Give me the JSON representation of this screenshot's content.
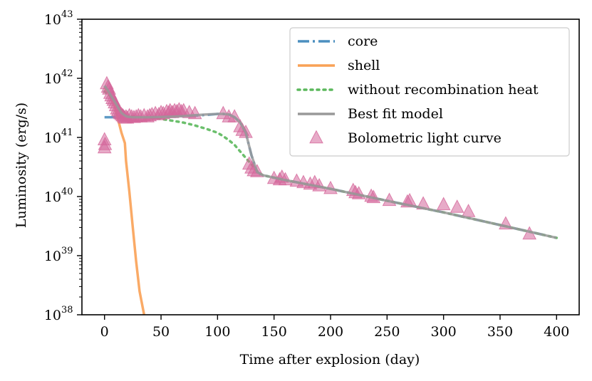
{
  "chart_data": {
    "type": "line",
    "title": "",
    "xlabel": "Time after explosion (day)",
    "ylabel": "Luminosity (erg/s)",
    "xlim": [
      -20,
      420
    ],
    "ylim": [
      1e+38,
      1e+43
    ],
    "yscale": "log",
    "x_ticks": [
      0,
      50,
      100,
      150,
      200,
      250,
      300,
      350,
      400
    ],
    "y_ticks": [
      {
        "value": 1e+38,
        "base": "10",
        "exp": "38"
      },
      {
        "value": 1e+39,
        "base": "10",
        "exp": "39"
      },
      {
        "value": 1e+40,
        "base": "10",
        "exp": "40"
      },
      {
        "value": 1e+41,
        "base": "10",
        "exp": "41"
      },
      {
        "value": 1e+42,
        "base": "10",
        "exp": "42"
      },
      {
        "value": 1e+43,
        "base": "10",
        "exp": "43"
      }
    ],
    "legend_position": "top-right",
    "series": [
      {
        "name": "core",
        "color": "#4c8fbf",
        "style": "dashdot",
        "x": [
          0,
          5,
          10,
          15,
          20,
          30,
          40,
          50,
          60,
          70,
          80,
          90,
          100,
          105,
          110,
          115,
          120,
          125,
          130,
          135,
          140,
          160,
          200,
          250,
          300,
          350,
          400
        ],
        "y": [
          2.2e+41,
          2.2e+41,
          2.2e+41,
          2.2e+41,
          2.2e+41,
          2.2e+41,
          2.2e+41,
          2.2e+41,
          2.25e+41,
          2.3e+41,
          2.35e+41,
          2.4e+41,
          2.5e+41,
          2.5e+41,
          2.45e+41,
          2.2e+41,
          1.8e+41,
          1.2e+41,
          5e+40,
          2.6e+40,
          2.3e+40,
          1.9e+40,
          1.35e+40,
          8.5e+39,
          5.4e+39,
          3.3e+39,
          2e+39
        ]
      },
      {
        "name": "shell",
        "color": "#f9a155",
        "style": "solid",
        "x": [
          0,
          3,
          6,
          9,
          12,
          15,
          18,
          19,
          22,
          25,
          28,
          31,
          35
        ],
        "y": [
          7e+41,
          6e+41,
          4.6e+41,
          3.3e+41,
          2e+41,
          1.2e+41,
          8e+40,
          4e+40,
          1.2e+40,
          3e+39,
          8e+38,
          2.5e+38,
          1e+38
        ]
      },
      {
        "name": "without recombination heat",
        "color": "#5bb85c",
        "style": "dotted",
        "x": [
          0,
          5,
          10,
          15,
          20,
          30,
          40,
          50,
          60,
          70,
          80,
          90,
          100,
          105,
          110,
          115,
          120,
          125,
          130,
          135,
          140,
          160,
          200,
          250,
          300,
          350,
          400
        ],
        "y": [
          6e+41,
          5e+41,
          4e+41,
          3e+41,
          2.3e+41,
          2.2e+41,
          2.15e+41,
          2.05e+41,
          1.92e+41,
          1.78e+41,
          1.6e+41,
          1.4e+41,
          1.2e+41,
          1.05e+41,
          9e+40,
          7.5e+40,
          5.8e+40,
          4.5e+40,
          3.5e+40,
          2.7e+40,
          2.3e+40,
          1.9e+40,
          1.35e+40,
          8.5e+39,
          5.4e+39,
          3.3e+39,
          2e+39
        ]
      },
      {
        "name": "Best fit model",
        "color": "#999999",
        "style": "solid",
        "x": [
          0,
          3,
          6,
          9,
          12,
          15,
          18,
          20,
          25,
          30,
          40,
          50,
          60,
          70,
          80,
          90,
          100,
          105,
          110,
          115,
          120,
          125,
          130,
          135,
          140,
          160,
          200,
          250,
          300,
          350,
          400
        ],
        "y": [
          7.5e+41,
          6.2e+41,
          5e+41,
          4e+41,
          3.2e+41,
          2.6e+41,
          2.35e+41,
          2.25e+41,
          2.2e+41,
          2.2e+41,
          2.2e+41,
          2.22e+41,
          2.25e+41,
          2.3e+41,
          2.38e+41,
          2.45e+41,
          2.5e+41,
          2.5e+41,
          2.45e+41,
          2.2e+41,
          1.8e+41,
          1.2e+41,
          5e+40,
          2.6e+40,
          2.3e+40,
          1.9e+40,
          1.35e+40,
          8.5e+39,
          5.4e+39,
          3.3e+39,
          2e+39
        ]
      }
    ],
    "scatter": {
      "name": "Bolometric light curve",
      "color": "#d4669a",
      "marker": "triangle",
      "x": [
        0,
        0,
        0.5,
        2,
        3,
        4,
        5,
        6,
        7,
        8,
        9,
        10,
        11,
        12,
        13,
        14,
        15,
        16,
        17,
        18,
        19,
        20,
        22,
        24,
        26,
        28,
        30,
        32,
        35,
        38,
        40,
        42,
        45,
        48,
        50,
        52,
        55,
        57,
        58,
        60,
        62,
        64,
        66,
        68,
        70,
        75,
        80,
        105,
        110,
        115,
        120,
        122,
        125,
        128,
        130,
        132,
        135,
        150,
        155,
        157,
        160,
        170,
        176,
        182,
        186,
        190,
        200,
        220,
        222,
        225,
        236,
        238,
        252,
        268,
        270,
        282,
        300,
        312,
        322,
        355,
        376
      ],
      "y": [
        9e+40,
        6.6e+40,
        7.5e+40,
        8e+41,
        7e+41,
        6.5e+41,
        5.5e+41,
        5e+41,
        4.5e+41,
        4.2e+41,
        3.8e+41,
        3.4e+41,
        3e+41,
        2.8e+41,
        2.6e+41,
        2.5e+41,
        2.4e+41,
        2.3e+41,
        2.2e+41,
        2.1e+41,
        2.2e+41,
        2.1e+41,
        2.3e+41,
        2.2e+41,
        2.15e+41,
        2.2e+41,
        2.3e+41,
        2.2e+41,
        2.3e+41,
        2.2e+41,
        2.3e+41,
        2.4e+41,
        2.5e+41,
        2.4e+41,
        2.6e+41,
        2.5e+41,
        2.7e+41,
        2.6e+41,
        2.8e+41,
        2.6e+41,
        2.8e+41,
        2.7e+41,
        2.9e+41,
        2.7e+41,
        2.8e+41,
        2.6e+41,
        2.5e+41,
        2.5e+41,
        2.2e+41,
        2.2e+41,
        1.5e+41,
        1.3e+41,
        1.2e+41,
        3.5e+40,
        3e+40,
        2.7e+40,
        2.6e+40,
        2e+40,
        1.9e+40,
        2.1e+40,
        1.9e+40,
        1.8e+40,
        1.7e+40,
        1.6e+40,
        1.7e+40,
        1.5e+40,
        1.35e+40,
        1.25e+40,
        1.15e+40,
        1.1e+40,
        1e+40,
        9.5e+39,
        8.5e+39,
        8e+39,
        8.4e+39,
        7.4e+39,
        7.2e+39,
        6.5e+39,
        5.5e+39,
        3.4e+39,
        2.3e+39
      ]
    }
  }
}
